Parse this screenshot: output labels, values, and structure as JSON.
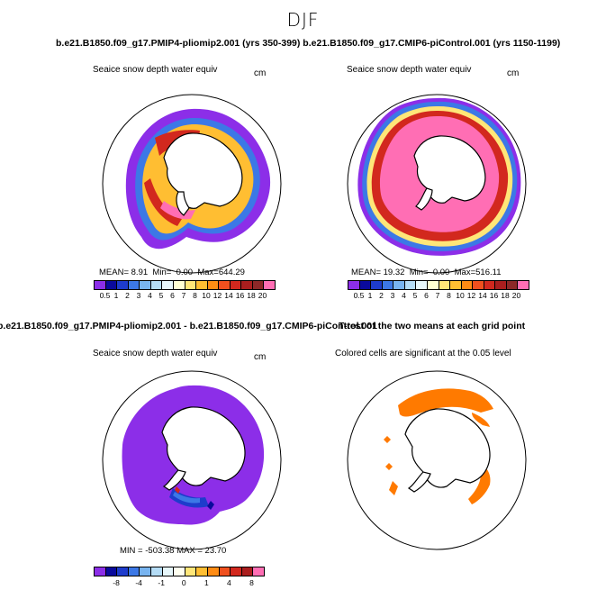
{
  "season": "DJF",
  "top_title": "b.e21.B1850.f09_g17.PMIP4-pliomip2.001 (yrs 350-399) b.e21.B1850.f09_g17.CMIP6-piControl.001 (yrs 1150-1199)",
  "diff_title": "b.e21.B1850.f09_g17.PMIP4-pliomip2.001 - b.e21.B1850.f09_g17.CMIP6-piControl.001",
  "ttest_title": "T-test of the two means at each grid point",
  "panels": {
    "p1": {
      "title": "Seaice snow depth water equiv",
      "units": "cm",
      "mean_label": "MEAN=",
      "mean": "8.91",
      "min_label": "Min=",
      "min": "0.00",
      "max_label": "Max=",
      "max": "644.29"
    },
    "p2": {
      "title": "Seaice snow depth water equiv",
      "units": "cm",
      "mean_label": "MEAN=",
      "mean": "19.32",
      "min_label": "Min=",
      "min": "0.00",
      "max_label": "Max=",
      "max": "516.11"
    },
    "p3": {
      "title": "Seaice snow depth water equiv",
      "units": "cm",
      "min_label": "MIN =",
      "min": "-503.38",
      "max_label": "MAX =",
      "max": "23.70"
    },
    "p4": {
      "title": "Colored cells are significant at the 0.05 level"
    }
  },
  "colorbar_abs": {
    "labels": [
      "0.5",
      "1",
      "2",
      "3",
      "4",
      "5",
      "6",
      "7",
      "8",
      "10",
      "12",
      "14",
      "16",
      "18",
      "20"
    ],
    "colors": [
      "#8c2ee8",
      "#0a0a9c",
      "#1e3ccc",
      "#3c78e6",
      "#78b4f0",
      "#b4dcf6",
      "#e6f6fa",
      "#ffffd2",
      "#ffe678",
      "#ffbe32",
      "#ff8c14",
      "#f0501e",
      "#d2281e",
      "#aa1e1e",
      "#8c2828",
      "#ff6eb4"
    ]
  },
  "colorbar_diff": {
    "labels": [
      "-8",
      "-4",
      "-1",
      "0",
      "1",
      "4",
      "8"
    ],
    "colors": [
      "#8c2ee8",
      "#0a0a9c",
      "#1e3ccc",
      "#3c78e6",
      "#78b4f0",
      "#b4dcf6",
      "#e6f6fa",
      "#fffff0",
      "#ffe678",
      "#ffbe32",
      "#ff8c14",
      "#f0501e",
      "#d2281e",
      "#aa1e1e",
      "#ff6eb4"
    ]
  },
  "colors": {
    "ttest_significant": "#ff7a00",
    "land_fill": "#ffffff"
  }
}
